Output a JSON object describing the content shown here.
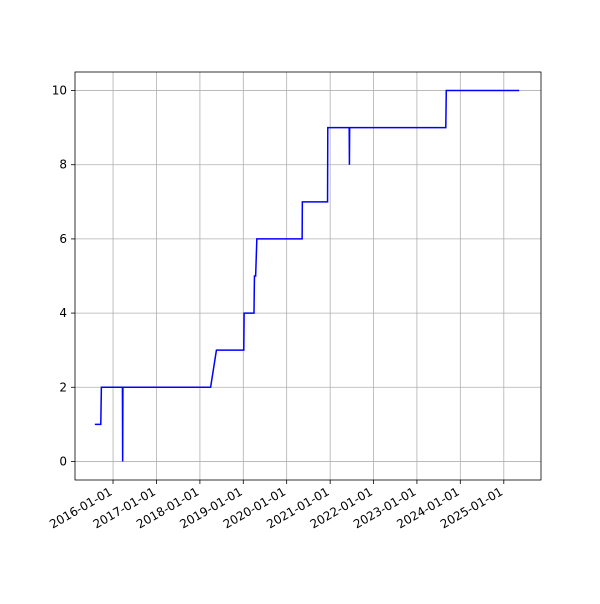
{
  "chart_data": {
    "type": "line",
    "x": [
      "2015-08-01",
      "2015-09-20",
      "2015-09-25",
      "2016-03-20",
      "2016-03-22",
      "2016-03-24",
      "2018-04-01",
      "2018-05-20",
      "2019-01-05",
      "2019-01-08",
      "2019-04-01",
      "2019-04-05",
      "2019-04-15",
      "2019-04-25",
      "2020-05-10",
      "2020-05-12",
      "2020-12-10",
      "2020-12-12",
      "2021-06-10",
      "2021-06-12",
      "2021-06-14",
      "2023-09-01",
      "2023-09-05",
      "2025-05-10"
    ],
    "series": [
      {
        "color": "#0000ff",
        "values": [
          1,
          1,
          2,
          2,
          0,
          2,
          2,
          3,
          3,
          4,
          4,
          5,
          5,
          6,
          6,
          7,
          7,
          9,
          9,
          8,
          9,
          9,
          10,
          10
        ]
      }
    ],
    "xlim": [
      "2015-02-15",
      "2025-11-10"
    ],
    "xticks": [
      "2016-01-01",
      "2017-01-01",
      "2018-01-01",
      "2019-01-01",
      "2020-01-01",
      "2021-01-01",
      "2022-01-01",
      "2023-01-01",
      "2024-01-01",
      "2025-01-01"
    ],
    "ylim": [
      -0.5,
      10.5
    ],
    "yticks": [
      0,
      2,
      4,
      6,
      8,
      10
    ],
    "grid": true
  }
}
